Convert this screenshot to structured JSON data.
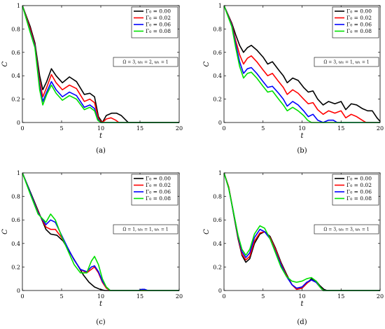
{
  "chart_data": [
    {
      "type": "line",
      "caption": "(a)",
      "params": "Ω = 3, ω₂ = 2, ω₁ = 1",
      "xlabel": "t",
      "ylabel": "C",
      "xlim": [
        0,
        20
      ],
      "ylim": [
        0,
        1
      ],
      "xticks": [
        "0",
        "5",
        "10",
        "15",
        "20"
      ],
      "yticks": [
        "0",
        "0.2",
        "0.4",
        "0.6",
        "0.8",
        "1"
      ],
      "grid": false,
      "legend": "top-right",
      "series": [
        {
          "name": "Γ₀ = 0.00",
          "color": "#000000",
          "x": [
            0,
            1,
            1.6,
            2.2,
            2.6,
            3.1,
            3.7,
            4.3,
            5.1,
            6,
            6.9,
            7.9,
            8.6,
            9.2,
            9.7,
            10.2,
            10.7,
            11.4,
            12,
            12.6,
            13.2,
            13.5,
            20
          ],
          "y": [
            1,
            0.82,
            0.68,
            0.4,
            0.28,
            0.35,
            0.46,
            0.4,
            0.34,
            0.39,
            0.35,
            0.24,
            0.25,
            0.22,
            0.05,
            0,
            0.06,
            0.08,
            0.08,
            0.06,
            0.02,
            0,
            0
          ]
        },
        {
          "name": "Γ₀ = 0.02",
          "color": "#ff0000",
          "x": [
            0,
            1,
            1.6,
            2.2,
            2.6,
            3.1,
            3.7,
            4.3,
            5.1,
            6,
            6.9,
            7.9,
            8.6,
            9.2,
            9.7,
            10.2,
            10.7,
            11.3,
            11.9,
            12.3,
            20
          ],
          "y": [
            1,
            0.8,
            0.66,
            0.35,
            0.22,
            0.3,
            0.41,
            0.34,
            0.28,
            0.32,
            0.29,
            0.18,
            0.2,
            0.17,
            0.03,
            0,
            0.03,
            0.04,
            0.02,
            0,
            0
          ]
        },
        {
          "name": "Γ₀ = 0.06",
          "color": "#0000ff",
          "x": [
            0,
            1,
            1.6,
            2.2,
            2.6,
            3.1,
            3.7,
            4.3,
            5.1,
            6,
            6.9,
            7.9,
            8.6,
            9.2,
            9.6,
            10,
            20
          ],
          "y": [
            1,
            0.78,
            0.65,
            0.31,
            0.18,
            0.26,
            0.35,
            0.28,
            0.22,
            0.26,
            0.23,
            0.13,
            0.15,
            0.12,
            0.03,
            0,
            0
          ]
        },
        {
          "name": "Γ₀ = 0.08",
          "color": "#00e000",
          "x": [
            0,
            1,
            1.6,
            2.2,
            2.6,
            3.1,
            3.7,
            4.3,
            5.1,
            6,
            6.9,
            7.9,
            8.6,
            9.2,
            9.6,
            10,
            20
          ],
          "y": [
            1,
            0.77,
            0.64,
            0.28,
            0.15,
            0.24,
            0.32,
            0.25,
            0.19,
            0.23,
            0.2,
            0.11,
            0.13,
            0.1,
            0.02,
            0,
            0
          ]
        }
      ]
    },
    {
      "type": "line",
      "caption": "(b)",
      "params": "Ω = 3, ω₂ = 1, ω₁ = 1",
      "xlabel": "t",
      "ylabel": "C",
      "xlim": [
        0,
        20
      ],
      "ylim": [
        0,
        1
      ],
      "xticks": [
        "0",
        "5",
        "10",
        "15",
        "20"
      ],
      "yticks": [
        "0",
        "0.2",
        "0.4",
        "0.6",
        "0.8",
        "1"
      ],
      "grid": false,
      "legend": "top-right",
      "series": [
        {
          "name": "Γ₀ = 0.00",
          "color": "#000000",
          "x": [
            0,
            1,
            1.5,
            2,
            2.5,
            3,
            3.5,
            4.2,
            5,
            5.6,
            6.2,
            7,
            7.6,
            8.1,
            8.8,
            9.5,
            10.2,
            10.8,
            11.4,
            12,
            12.7,
            13.4,
            14.2,
            15,
            15.6,
            16.3,
            17,
            17.7,
            18.4,
            19,
            19.6,
            20
          ],
          "y": [
            1,
            0.85,
            0.75,
            0.66,
            0.6,
            0.64,
            0.66,
            0.62,
            0.56,
            0.5,
            0.52,
            0.45,
            0.4,
            0.34,
            0.38,
            0.36,
            0.3,
            0.26,
            0.27,
            0.2,
            0.15,
            0.18,
            0.16,
            0.18,
            0.11,
            0.16,
            0.15,
            0.12,
            0.1,
            0.1,
            0.04,
            0.01
          ]
        },
        {
          "name": "Γ₀ = 0.02",
          "color": "#ff0000",
          "x": [
            0,
            1,
            1.5,
            2,
            2.5,
            3,
            3.5,
            4.2,
            5,
            5.6,
            6.2,
            7,
            7.6,
            8.1,
            8.8,
            9.5,
            10.2,
            10.8,
            11.4,
            12,
            12.7,
            13.4,
            14.2,
            15,
            15.6,
            16.3,
            17,
            17.7,
            18.2,
            20
          ],
          "y": [
            1,
            0.84,
            0.7,
            0.58,
            0.5,
            0.55,
            0.57,
            0.52,
            0.45,
            0.4,
            0.42,
            0.35,
            0.3,
            0.24,
            0.28,
            0.25,
            0.2,
            0.16,
            0.17,
            0.11,
            0.07,
            0.1,
            0.08,
            0.1,
            0.04,
            0.07,
            0.05,
            0.02,
            0,
            0
          ]
        },
        {
          "name": "Γ₀ = 0.06",
          "color": "#0000ff",
          "x": [
            0,
            1,
            1.5,
            2,
            2.5,
            3,
            3.5,
            4.2,
            5,
            5.6,
            6.2,
            7,
            7.6,
            8.1,
            8.8,
            9.5,
            10.2,
            10.8,
            11.4,
            12,
            12.7,
            13.4,
            14,
            14.5,
            20
          ],
          "y": [
            1,
            0.83,
            0.67,
            0.52,
            0.42,
            0.46,
            0.47,
            0.42,
            0.35,
            0.3,
            0.31,
            0.25,
            0.2,
            0.14,
            0.18,
            0.15,
            0.1,
            0.05,
            0.07,
            0.02,
            0,
            0.02,
            0.02,
            0,
            0
          ]
        },
        {
          "name": "Γ₀ = 0.08",
          "color": "#00e000",
          "x": [
            0,
            1,
            1.5,
            2,
            2.5,
            3,
            3.5,
            4.2,
            5,
            5.6,
            6.2,
            7,
            7.6,
            8.1,
            8.8,
            9.5,
            10.2,
            10.7,
            11.2,
            20
          ],
          "y": [
            1,
            0.82,
            0.64,
            0.48,
            0.38,
            0.42,
            0.43,
            0.38,
            0.31,
            0.26,
            0.27,
            0.2,
            0.15,
            0.1,
            0.13,
            0.1,
            0.06,
            0.02,
            0,
            0
          ]
        }
      ]
    },
    {
      "type": "line",
      "caption": "(c)",
      "params": "Ω = 1, ω₂ = 1, ω₁ = 1",
      "xlabel": "t",
      "ylabel": "C",
      "xlim": [
        0,
        20
      ],
      "ylim": [
        0,
        1
      ],
      "xticks": [
        "0",
        "5",
        "10",
        "15",
        "20"
      ],
      "yticks": [
        "0",
        "0.2",
        "0.4",
        "0.6",
        "0.8",
        "1"
      ],
      "grid": false,
      "legend": "top-right",
      "series": [
        {
          "name": "Γ₀ = 0.00",
          "color": "#000000",
          "x": [
            0,
            1,
            2,
            3,
            3.6,
            4.4,
            5.2,
            6,
            7,
            7.8,
            8.5,
            9.2,
            9.9,
            10.5,
            11,
            20
          ],
          "y": [
            1,
            0.84,
            0.68,
            0.52,
            0.48,
            0.47,
            0.42,
            0.33,
            0.22,
            0.13,
            0.07,
            0.03,
            0.01,
            0,
            0,
            0
          ]
        },
        {
          "name": "Γ₀ = 0.02",
          "color": "#ff0000",
          "x": [
            0,
            1,
            2,
            3,
            3.6,
            4.2,
            5,
            5.8,
            6.6,
            7.4,
            8.2,
            8.8,
            9.2,
            9.7,
            10.2,
            10.7,
            11.2,
            20
          ],
          "y": [
            1,
            0.83,
            0.67,
            0.54,
            0.52,
            0.52,
            0.45,
            0.36,
            0.26,
            0.18,
            0.15,
            0.18,
            0.2,
            0.15,
            0.07,
            0.02,
            0,
            0
          ]
        },
        {
          "name": "Γ₀ = 0.06",
          "color": "#0000ff",
          "x": [
            0,
            1,
            2,
            3,
            3.6,
            4.2,
            5,
            5.8,
            6.6,
            7.4,
            8.2,
            8.8,
            9.2,
            9.7,
            10.2,
            10.7,
            11.2,
            14.8,
            15.2,
            15.6,
            16,
            20
          ],
          "y": [
            1,
            0.83,
            0.66,
            0.56,
            0.6,
            0.58,
            0.47,
            0.36,
            0.26,
            0.18,
            0.16,
            0.2,
            0.21,
            0.16,
            0.08,
            0.03,
            0,
            0,
            0.01,
            0.01,
            0,
            0
          ]
        },
        {
          "name": "Γ₀ = 0.08",
          "color": "#00e000",
          "x": [
            0,
            1,
            2,
            3,
            3.6,
            4.2,
            5,
            5.8,
            6.6,
            7.4,
            8.2,
            8.8,
            9.2,
            9.7,
            10.2,
            10.7,
            11.2,
            20
          ],
          "y": [
            1,
            0.82,
            0.65,
            0.58,
            0.65,
            0.6,
            0.46,
            0.34,
            0.22,
            0.15,
            0.15,
            0.25,
            0.29,
            0.22,
            0.1,
            0.03,
            0,
            0
          ]
        }
      ]
    },
    {
      "type": "line",
      "caption": "(d)",
      "params": "Ω = 3, ω₂ = 3, ω₁ = 1",
      "xlabel": "t",
      "ylabel": "C",
      "xlim": [
        0,
        20
      ],
      "ylim": [
        0,
        1
      ],
      "xticks": [
        "0",
        "5",
        "10",
        "15",
        "20"
      ],
      "yticks": [
        "0",
        "0.2",
        "0.4",
        "0.6",
        "0.8",
        "1"
      ],
      "grid": false,
      "legend": "top-right",
      "series": [
        {
          "name": "Γ₀ = 0.00",
          "color": "#000000",
          "x": [
            0,
            0.6,
            1.2,
            1.8,
            2.3,
            2.8,
            3.3,
            3.9,
            4.6,
            5.2,
            5.9,
            6.6,
            7.3,
            8,
            8.7,
            9.3,
            10,
            10.6,
            11.2,
            11.8,
            12.3,
            12.8,
            13.2,
            20
          ],
          "y": [
            1,
            0.88,
            0.66,
            0.44,
            0.3,
            0.24,
            0.27,
            0.4,
            0.48,
            0.5,
            0.46,
            0.36,
            0.24,
            0.14,
            0.05,
            0.01,
            0.02,
            0.06,
            0.1,
            0.08,
            0.04,
            0.01,
            0,
            0
          ]
        },
        {
          "name": "Γ₀ = 0.02",
          "color": "#ff0000",
          "x": [
            0,
            0.6,
            1.2,
            1.8,
            2.3,
            2.8,
            3.3,
            3.9,
            4.6,
            5.2,
            5.9,
            6.6,
            7.3,
            8,
            8.7,
            9.3,
            10,
            10.6,
            11.2,
            11.8,
            12.3,
            12.7,
            20
          ],
          "y": [
            1,
            0.88,
            0.67,
            0.45,
            0.31,
            0.26,
            0.29,
            0.42,
            0.49,
            0.5,
            0.45,
            0.35,
            0.23,
            0.13,
            0.05,
            0.01,
            0.02,
            0.06,
            0.09,
            0.07,
            0.03,
            0,
            0
          ]
        },
        {
          "name": "Γ₀ = 0.06",
          "color": "#0000ff",
          "x": [
            0,
            0.6,
            1.2,
            1.8,
            2.3,
            2.8,
            3.3,
            3.9,
            4.6,
            5.2,
            5.9,
            6.6,
            7.3,
            8,
            8.7,
            9.3,
            10,
            10.6,
            11.2,
            11.8,
            12.3,
            12.7,
            20
          ],
          "y": [
            1,
            0.87,
            0.67,
            0.46,
            0.33,
            0.28,
            0.32,
            0.45,
            0.52,
            0.5,
            0.44,
            0.33,
            0.22,
            0.12,
            0.05,
            0.02,
            0.03,
            0.07,
            0.09,
            0.07,
            0.03,
            0,
            0
          ]
        },
        {
          "name": "Γ₀ = 0.08",
          "color": "#00e000",
          "x": [
            0,
            0.6,
            1.2,
            1.8,
            2.3,
            2.8,
            3.3,
            3.9,
            4.6,
            5.2,
            5.9,
            6.6,
            7.3,
            8,
            8.7,
            9.3,
            10,
            10.6,
            11.2,
            11.8,
            12.3,
            12.7,
            20
          ],
          "y": [
            1,
            0.87,
            0.67,
            0.47,
            0.35,
            0.3,
            0.35,
            0.48,
            0.55,
            0.53,
            0.44,
            0.32,
            0.2,
            0.12,
            0.08,
            0.07,
            0.08,
            0.1,
            0.11,
            0.08,
            0.03,
            0,
            0
          ]
        }
      ]
    }
  ]
}
